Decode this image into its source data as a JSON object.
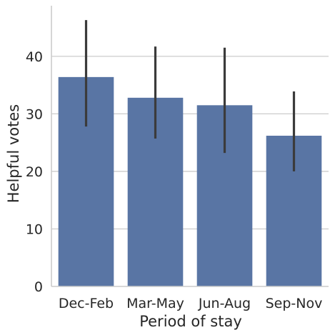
{
  "chart_data": {
    "type": "bar",
    "title": "",
    "xlabel": "Period of stay",
    "ylabel": "Helpful votes",
    "categories": [
      "Dec-Feb",
      "Mar-May",
      "Jun-Aug",
      "Sep-Nov"
    ],
    "values": [
      36.4,
      32.8,
      31.5,
      26.2
    ],
    "error_low": [
      27.8,
      25.7,
      23.2,
      20.0
    ],
    "error_high": [
      46.3,
      41.7,
      41.5,
      33.9
    ],
    "ylim": [
      0,
      48.8
    ],
    "yticks": [
      0,
      10,
      20,
      30,
      40
    ],
    "grid": "horizontal",
    "bar_color": "#5975a4",
    "error_color": "#3b3b3b",
    "grid_color": "#cccccc",
    "axis_color": "#cccccc"
  }
}
